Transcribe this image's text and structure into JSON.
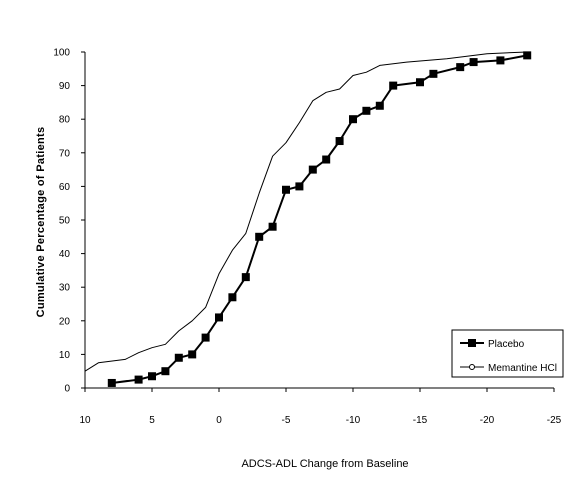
{
  "chart_data": {
    "type": "line",
    "xlabel": "ADCS-ADL Change from Baseline",
    "ylabel": "Cumulative Percentage of Patients",
    "xlim": [
      10,
      -25
    ],
    "ylim": [
      0,
      100
    ],
    "x_ticks": [
      10,
      5,
      0,
      -5,
      -10,
      -15,
      -20,
      -25
    ],
    "y_ticks": [
      0,
      10,
      20,
      30,
      40,
      50,
      60,
      70,
      80,
      90,
      100
    ],
    "grid": false,
    "legend_position": "bottom-right",
    "series": [
      {
        "name": "Placebo",
        "marker": "square",
        "points": [
          [
            8,
            1.5
          ],
          [
            6,
            2.5
          ],
          [
            5,
            3.5
          ],
          [
            4,
            5
          ],
          [
            3,
            9
          ],
          [
            2,
            10
          ],
          [
            1,
            15
          ],
          [
            0,
            21
          ],
          [
            -1,
            27
          ],
          [
            -2,
            33
          ],
          [
            -3,
            45
          ],
          [
            -4,
            48
          ],
          [
            -5,
            59
          ],
          [
            -6,
            60
          ],
          [
            -7,
            65
          ],
          [
            -8,
            68
          ],
          [
            -9,
            73.5
          ],
          [
            -10,
            80
          ],
          [
            -11,
            82.5
          ],
          [
            -12,
            84
          ],
          [
            -13,
            90
          ],
          [
            -15,
            91
          ],
          [
            -16,
            93.5
          ],
          [
            -18,
            95.5
          ],
          [
            -19,
            97
          ],
          [
            -21,
            97.5
          ],
          [
            -23,
            99
          ]
        ]
      },
      {
        "name": "Memantine HCl",
        "marker": "line",
        "points": [
          [
            10,
            5
          ],
          [
            9,
            7.5
          ],
          [
            7,
            8.5
          ],
          [
            6,
            10.5
          ],
          [
            5,
            12
          ],
          [
            4,
            13
          ],
          [
            3,
            17
          ],
          [
            2,
            20
          ],
          [
            1,
            24
          ],
          [
            0,
            34
          ],
          [
            -1,
            41
          ],
          [
            -2,
            46
          ],
          [
            -3,
            58
          ],
          [
            -4,
            69
          ],
          [
            -5,
            73
          ],
          [
            -6,
            79
          ],
          [
            -7,
            85.5
          ],
          [
            -8,
            88
          ],
          [
            -9,
            89
          ],
          [
            -10,
            93
          ],
          [
            -11,
            94
          ],
          [
            -12,
            96
          ],
          [
            -14,
            97
          ],
          [
            -17,
            98
          ],
          [
            -20,
            99.5
          ],
          [
            -23,
            100
          ]
        ]
      }
    ]
  }
}
